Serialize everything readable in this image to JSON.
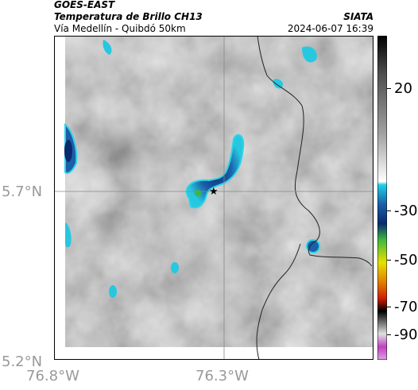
{
  "header": {
    "satellite": "GOES-EAST",
    "product": "Temperatura de Brillo CH13",
    "region": "Vía Medellín - Quibdó 50km",
    "organization": "SIATA",
    "timestamp": "2024-06-07 16:39"
  },
  "map": {
    "lat_labels": [
      "5.7°N",
      "5.2°N"
    ],
    "lon_labels": [
      "76.8°W",
      "76.3°W"
    ],
    "marker": "star-marker"
  },
  "colorbar": {
    "ticks": [
      "20",
      "-30",
      "-50",
      "-70",
      "-90"
    ],
    "colors": {
      "warm_gray": "#8a8a8a",
      "cold_blue": "#1a5fa8",
      "cyan": "#1fd0e8",
      "green": "#3db83d",
      "yellow": "#e8e000",
      "red": "#d02000",
      "magenta": "#c040c0"
    }
  }
}
